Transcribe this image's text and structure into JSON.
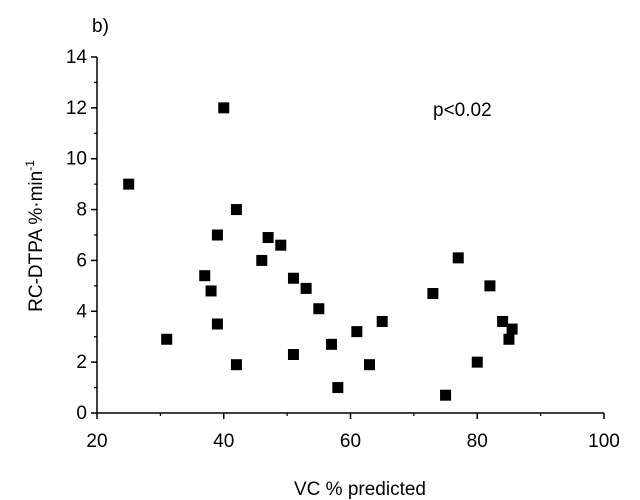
{
  "chart_data": {
    "type": "scatter",
    "panel_label": "b)",
    "annotation": "p<0.02",
    "xlabel": "VC  % predicted",
    "ylabel": "RC-DTPA  %·min",
    "ylabel_superscript": "-1",
    "xlim": [
      20,
      100
    ],
    "ylim": [
      0,
      14
    ],
    "x_ticks": [
      20,
      40,
      60,
      80,
      100
    ],
    "y_ticks": [
      0,
      2,
      4,
      6,
      8,
      10,
      12,
      14
    ],
    "grid": false,
    "marker": "square",
    "marker_color": "#000000",
    "series": [
      {
        "x": [
          25,
          31,
          37,
          38,
          39,
          39,
          40,
          42,
          42,
          46,
          47,
          49,
          51,
          51,
          53,
          55,
          57,
          58,
          61,
          63,
          65,
          73,
          75,
          77,
          80,
          82,
          84,
          85,
          85.5
        ],
        "y": [
          9.0,
          2.9,
          5.4,
          4.8,
          3.5,
          7.0,
          12.0,
          8.0,
          1.9,
          6.0,
          6.9,
          6.6,
          5.3,
          2.3,
          4.9,
          4.1,
          2.7,
          1.0,
          3.2,
          1.9,
          3.6,
          4.7,
          0.7,
          6.1,
          2.0,
          5.0,
          3.6,
          2.9,
          3.3
        ]
      }
    ]
  }
}
